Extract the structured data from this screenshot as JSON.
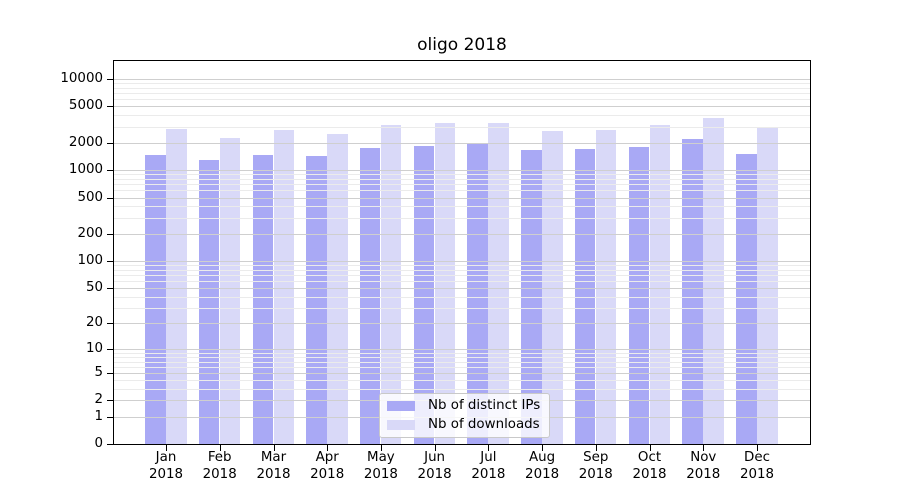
{
  "chart_data": {
    "type": "bar",
    "title": "oligo 2018",
    "categories": [
      "Jan",
      "Feb",
      "Mar",
      "Apr",
      "May",
      "Jun",
      "Jul",
      "Aug",
      "Sep",
      "Oct",
      "Nov",
      "Dec"
    ],
    "x_tick_year": "2018",
    "series": [
      {
        "name": "Nb of distinct IPs",
        "color": "#a9a9f5",
        "values": [
          1470,
          1300,
          1460,
          1430,
          1740,
          1860,
          1980,
          1670,
          1700,
          1810,
          2180,
          1500
        ]
      },
      {
        "name": "Nb of downloads",
        "color": "#d9d9f8",
        "values": [
          2790,
          2250,
          2720,
          2480,
          3130,
          3270,
          3270,
          2690,
          2760,
          3130,
          3710,
          2960
        ]
      }
    ],
    "yscale": "log1p",
    "ylim": [
      0,
      16000
    ],
    "yticks": [
      0,
      1,
      2,
      5,
      10,
      20,
      50,
      100,
      200,
      500,
      1000,
      2000,
      5000,
      10000
    ],
    "grid": true,
    "legend_position": "inside lower center",
    "colors": {
      "major_gridline": "#cfcfcf",
      "minor_gridline": "#ebebeb",
      "axis": "#000000"
    }
  }
}
